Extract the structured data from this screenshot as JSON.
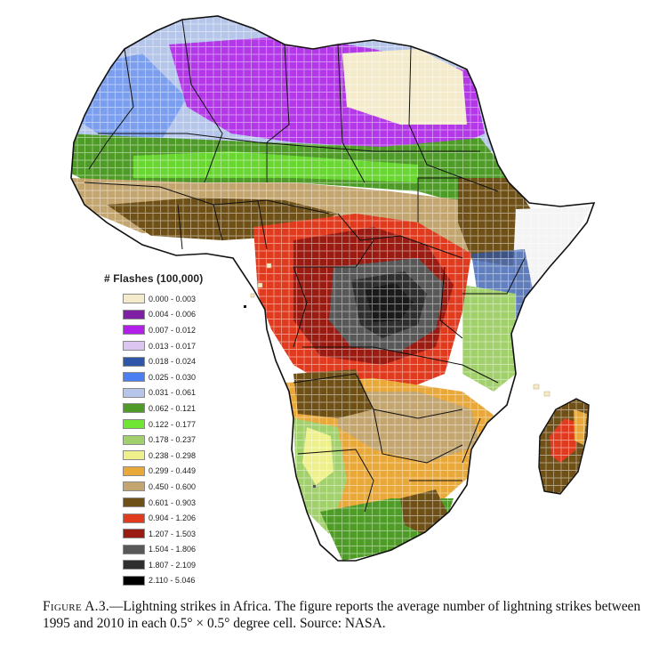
{
  "legend": {
    "title": "# Flashes (100,000)",
    "items": [
      {
        "label": "0.000 - 0.003",
        "color": "#f4ebcc"
      },
      {
        "label": "0.004 - 0.006",
        "color": "#7f1fa3"
      },
      {
        "label": "0.007 - 0.012",
        "color": "#b11fe8"
      },
      {
        "label": "0.013 - 0.017",
        "color": "#dcc6f1"
      },
      {
        "label": "0.018 - 0.024",
        "color": "#2e56a9"
      },
      {
        "label": "0.025 - 0.030",
        "color": "#4b7ef0"
      },
      {
        "label": "0.031 - 0.061",
        "color": "#b6c6ea"
      },
      {
        "label": "0.062 - 0.121",
        "color": "#4f9b27"
      },
      {
        "label": "0.122 - 0.177",
        "color": "#6fe534"
      },
      {
        "label": "0.178 - 0.237",
        "color": "#a2d06c"
      },
      {
        "label": "0.238 - 0.298",
        "color": "#eef08c"
      },
      {
        "label": "0.299 - 0.449",
        "color": "#e9a93a"
      },
      {
        "label": "0.450 - 0.600",
        "color": "#c3a56f"
      },
      {
        "label": "0.601 - 0.903",
        "color": "#6f5118"
      },
      {
        "label": "0.904 - 1.206",
        "color": "#e13b1f"
      },
      {
        "label": "1.207 - 1.503",
        "color": "#9a1b12"
      },
      {
        "label": "1.504 - 1.806",
        "color": "#585858"
      },
      {
        "label": "1.807 - 2.109",
        "color": "#2f2f2f"
      },
      {
        "label": "2.110 - 5.046",
        "color": "#000000"
      }
    ]
  },
  "caption": {
    "figure_label": "Figure A.3.",
    "text": "—Lightning strikes in Africa. The figure reports the average number of lightning strikes between 1995 and 2010 in each 0.5° × 0.5° degree cell. Source: NASA."
  }
}
